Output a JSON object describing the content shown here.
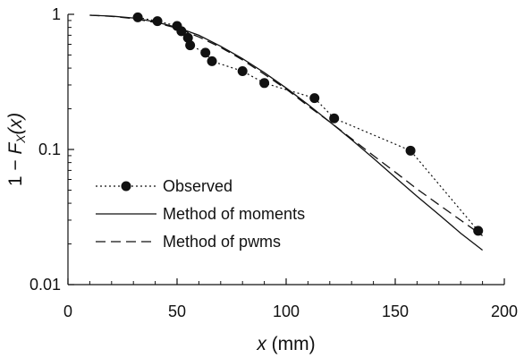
{
  "chart_data": {
    "type": "line",
    "title": "",
    "xlabel": {
      "var": "x",
      "unit": " (mm)"
    },
    "ylabel": {
      "prefix": "1 − ",
      "main": "F",
      "sub": "X",
      "arg": "(x)"
    },
    "xlim": [
      0,
      200
    ],
    "ylim": [
      0.01,
      1
    ],
    "yscale": "log",
    "x_ticks": [
      0,
      50,
      100,
      150,
      200
    ],
    "x_tick_labels": [
      "0",
      "50",
      "100",
      "150",
      "200"
    ],
    "y_ticks": [
      0.01,
      0.1,
      1
    ],
    "y_tick_labels": [
      "0.01",
      "0.1",
      "1"
    ],
    "grid": false,
    "legend_position": "lower-left",
    "series": [
      {
        "name": "Observed",
        "style": "dotted-with-markers",
        "x": [
          32,
          41,
          50,
          52,
          55,
          56,
          63,
          66,
          80,
          90,
          113,
          122,
          157,
          188
        ],
        "y": [
          0.95,
          0.89,
          0.82,
          0.75,
          0.67,
          0.59,
          0.52,
          0.45,
          0.38,
          0.31,
          0.24,
          0.17,
          0.098,
          0.025
        ]
      },
      {
        "name": "Method of moments",
        "style": "solid",
        "x": [
          10,
          20,
          30,
          40,
          50,
          60,
          70,
          80,
          90,
          100,
          110,
          120,
          130,
          140,
          150,
          160,
          170,
          180,
          190
        ],
        "y": [
          0.985,
          0.97,
          0.94,
          0.88,
          0.8,
          0.7,
          0.58,
          0.47,
          0.37,
          0.285,
          0.215,
          0.16,
          0.118,
          0.086,
          0.062,
          0.045,
          0.033,
          0.024,
          0.018
        ]
      },
      {
        "name": "Method of pwms",
        "style": "dashed",
        "x": [
          10,
          20,
          30,
          40,
          50,
          60,
          70,
          80,
          90,
          100,
          110,
          120,
          130,
          140,
          150,
          160,
          170,
          180,
          190
        ],
        "y": [
          0.985,
          0.965,
          0.93,
          0.87,
          0.79,
          0.68,
          0.57,
          0.46,
          0.36,
          0.28,
          0.21,
          0.16,
          0.12,
          0.09,
          0.068,
          0.051,
          0.039,
          0.03,
          0.023
        ]
      }
    ]
  }
}
